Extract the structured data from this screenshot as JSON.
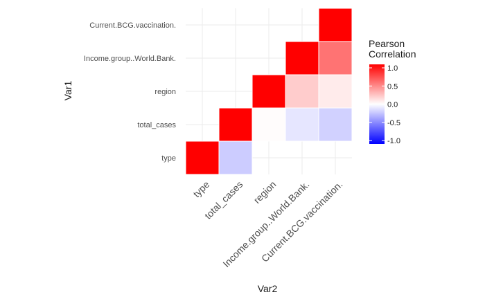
{
  "chart_data": {
    "type": "heatmap",
    "variables": [
      "type",
      "total_cases",
      "region",
      "Income.group..World.Bank.",
      "Current.BCG.vaccination."
    ],
    "cells": [
      {
        "x": "type",
        "y": "type",
        "value": 1.0
      },
      {
        "x": "total_cases",
        "y": "type",
        "value": -0.2
      },
      {
        "x": "total_cases",
        "y": "total_cases",
        "value": 1.0
      },
      {
        "x": "region",
        "y": "total_cases",
        "value": 0.01
      },
      {
        "x": "region",
        "y": "region",
        "value": 1.0
      },
      {
        "x": "Income.group..World.Bank.",
        "y": "total_cases",
        "value": -0.1
      },
      {
        "x": "Income.group..World.Bank.",
        "y": "region",
        "value": 0.2
      },
      {
        "x": "Income.group..World.Bank.",
        "y": "Income.group..World.Bank.",
        "value": 1.0
      },
      {
        "x": "Current.BCG.vaccination.",
        "y": "total_cases",
        "value": -0.18
      },
      {
        "x": "Current.BCG.vaccination.",
        "y": "region",
        "value": 0.08
      },
      {
        "x": "Current.BCG.vaccination.",
        "y": "Income.group..World.Bank.",
        "value": 0.55
      },
      {
        "x": "Current.BCG.vaccination.",
        "y": "Current.BCG.vaccination.",
        "value": 1.0
      }
    ],
    "xlabel": "Var2",
    "ylabel": "Var1",
    "legend": {
      "title_lines": [
        "Pearson",
        "Correlation"
      ],
      "ticks": [
        "1.0",
        "0.5",
        "0.0",
        "-0.5",
        "-1.0"
      ],
      "range": [
        -1,
        1
      ],
      "placement": "right"
    },
    "colors": {
      "low": "#0000ff",
      "mid": "#ffffff",
      "high": "#ff0000"
    }
  }
}
